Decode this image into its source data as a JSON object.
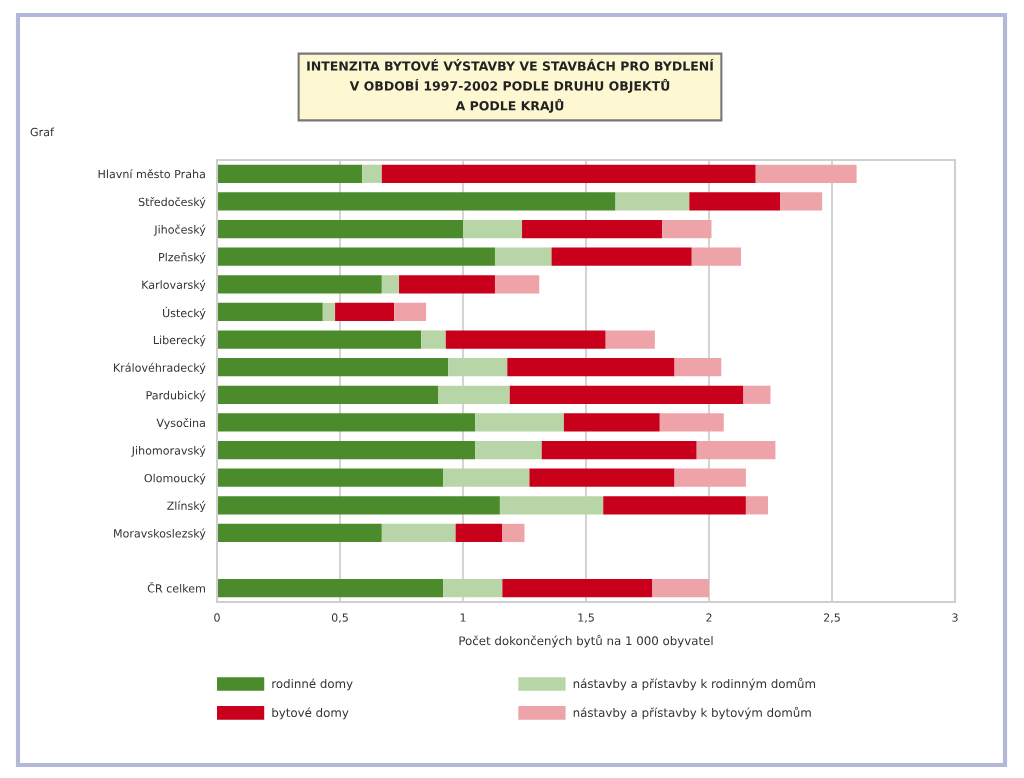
{
  "chart_data": {
    "type": "bar",
    "orientation": "horizontal",
    "stacked": true,
    "title": "INTENZITA BYTOVÉ VÝSTAVBY VE STAVBÁCH PRO BYDLENÍ\nV OBDOBÍ 1997-2002 PODLE DRUHU OBJEKTŮ\nA PODLE KRAJŮ",
    "annotations": [
      "Graf"
    ],
    "xlabel": "Počet dokončených bytů na 1 000 obyvatel",
    "categories": [
      "Hlavní město Praha",
      "Středočeský",
      "Jihočeský",
      "Plzeňský",
      "Karlovarský",
      "Ústecký",
      "Liberecký",
      "Královéhradecký",
      "Pardubický",
      "Vysočina",
      "Jihomoravský",
      "Olomoucký",
      "Zlínský",
      "Moravskoslezský",
      null,
      "ČR celkem"
    ],
    "series": [
      {
        "name": "rodinné domy",
        "color": "#4b8b2b",
        "values": [
          0.59,
          1.62,
          1.0,
          1.13,
          0.67,
          0.43,
          0.83,
          0.94,
          0.9,
          1.05,
          1.05,
          0.92,
          1.15,
          0.67,
          null,
          0.92
        ]
      },
      {
        "name": "nástavby a přístavby k rodinným domům",
        "color": "#b8d5a8",
        "values": [
          0.08,
          0.3,
          0.24,
          0.23,
          0.07,
          0.05,
          0.1,
          0.24,
          0.29,
          0.36,
          0.27,
          0.35,
          0.42,
          0.3,
          null,
          0.24
        ]
      },
      {
        "name": "bytové domy",
        "color": "#c8001c",
        "values": [
          1.52,
          0.37,
          0.57,
          0.57,
          0.39,
          0.24,
          0.65,
          0.68,
          0.95,
          0.39,
          0.63,
          0.59,
          0.58,
          0.19,
          null,
          0.61
        ]
      },
      {
        "name": "nástavby a přístavby k bytovým domům",
        "color": "#eea3a8",
        "values": [
          0.41,
          0.17,
          0.2,
          0.2,
          0.18,
          0.13,
          0.2,
          0.19,
          0.11,
          0.26,
          0.32,
          0.29,
          0.09,
          0.09,
          null,
          0.23
        ]
      }
    ],
    "xlim": [
      0,
      3
    ],
    "xticks": [
      0,
      {
        "value": 0.5,
        "label": "0,5"
      },
      1,
      {
        "value": 1.5,
        "label": "1,5"
      },
      2,
      {
        "value": 2.5,
        "label": "2,5"
      },
      3
    ],
    "grid": "x",
    "legend": "bottom"
  }
}
